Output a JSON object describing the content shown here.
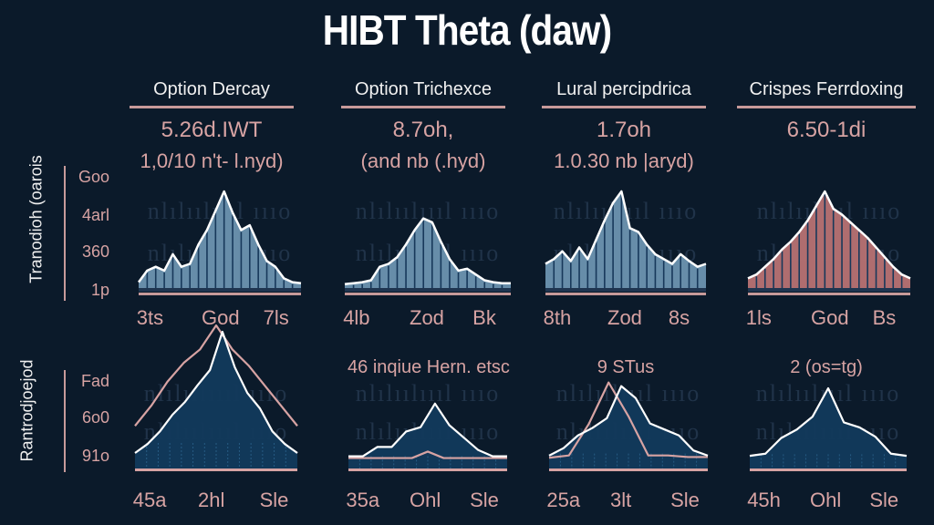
{
  "chart_data": {
    "title": "HIBT Theta (daw)",
    "type": "area",
    "row_labels": [
      "Tranodioh (oarois",
      "Rantrodjoejod"
    ],
    "top_y_ticks": [
      "Goo",
      "4arl",
      "360",
      "1p"
    ],
    "bottom_y_ticks": [
      "Fad",
      "6o0",
      "91o"
    ],
    "columns": [
      {
        "header": "Option Dercay",
        "value1": "5.26d.IWT",
        "value2": "1,0/10 n't- l.nyd)"
      },
      {
        "header": "Option Trichexce",
        "value1": "8.7oh,",
        "value2": "(and nb (.hyd)"
      },
      {
        "header": "Lural percipdrica",
        "value1": "1.7oh",
        "value2": "1.0.30 nb |aryd)"
      },
      {
        "header": "Crispes Ferrdoxing",
        "value1": "6.50-1di",
        "value2": ""
      }
    ],
    "top_panels": [
      {
        "fill": "#6d93b0",
        "x_ticks": [
          "3ts",
          "God",
          "7ls"
        ],
        "values": [
          0.06,
          0.18,
          0.22,
          0.18,
          0.35,
          0.22,
          0.25,
          0.45,
          0.6,
          0.8,
          1.0,
          0.78,
          0.6,
          0.65,
          0.45,
          0.28,
          0.22,
          0.1,
          0.06,
          0.05
        ]
      },
      {
        "fill": "#6d93b0",
        "x_ticks": [
          "4lb",
          "Zod",
          "Bk"
        ],
        "values": [
          0.04,
          0.05,
          0.06,
          0.08,
          0.22,
          0.25,
          0.32,
          0.45,
          0.6,
          0.72,
          0.68,
          0.48,
          0.3,
          0.18,
          0.2,
          0.14,
          0.08,
          0.06,
          0.05,
          0.05
        ]
      },
      {
        "fill": "#6d93b0",
        "x_ticks": [
          "8th",
          "Zod",
          "8s"
        ],
        "values": [
          0.25,
          0.3,
          0.38,
          0.28,
          0.42,
          0.3,
          0.5,
          0.7,
          0.88,
          1.0,
          0.62,
          0.58,
          0.45,
          0.35,
          0.3,
          0.25,
          0.35,
          0.28,
          0.22,
          0.25
        ]
      },
      {
        "fill": "#b87273",
        "x_ticks": [
          "1ls",
          "God",
          "Bs"
        ],
        "values": [
          0.1,
          0.14,
          0.22,
          0.3,
          0.4,
          0.48,
          0.58,
          0.7,
          0.85,
          1.0,
          0.82,
          0.76,
          0.68,
          0.6,
          0.52,
          0.42,
          0.32,
          0.22,
          0.14,
          0.1
        ]
      }
    ],
    "bottom_panels": [
      {
        "subtitle": "",
        "x_ticks": [
          "45a",
          "2hl",
          "Sle"
        ],
        "white": [
          0.05,
          0.12,
          0.22,
          0.35,
          0.45,
          0.58,
          0.7,
          1.0,
          0.72,
          0.52,
          0.4,
          0.22,
          0.12,
          0.05
        ],
        "pink": [
          0.25,
          0.4,
          0.58,
          0.72,
          0.82,
          1.0,
          0.82,
          0.7,
          0.55,
          0.4,
          0.25
        ]
      },
      {
        "subtitle": "46 inqiue Hern. etsc",
        "x_ticks": [
          "35a",
          "Ohl",
          "Sle"
        ],
        "white": [
          0.05,
          0.05,
          0.2,
          0.2,
          0.45,
          0.52,
          0.9,
          0.55,
          0.35,
          0.15,
          0.05,
          0.05
        ],
        "pink": [
          0.02,
          0.02,
          0.02,
          0.02,
          0.02,
          0.12,
          0.02,
          0.02,
          0.02,
          0.02,
          0.02
        ]
      },
      {
        "subtitle": "9 STus",
        "x_ticks": [
          "25a",
          "3lt",
          "Sle"
        ],
        "white": [
          0.05,
          0.15,
          0.32,
          0.42,
          0.55,
          0.98,
          0.82,
          0.48,
          0.4,
          0.32,
          0.12,
          0.05
        ],
        "pink": [
          0.02,
          0.05,
          0.45,
          0.98,
          0.55,
          0.05,
          0.05,
          0.03,
          0.03
        ]
      },
      {
        "subtitle": "2 (os=tg)",
        "x_ticks": [
          "45h",
          "Ohl",
          "Sle"
        ],
        "white": [
          0.05,
          0.08,
          0.3,
          0.42,
          0.6,
          1.0,
          0.52,
          0.45,
          0.32,
          0.08,
          0.05
        ],
        "pink": []
      }
    ]
  },
  "watermark": "watermark-text"
}
